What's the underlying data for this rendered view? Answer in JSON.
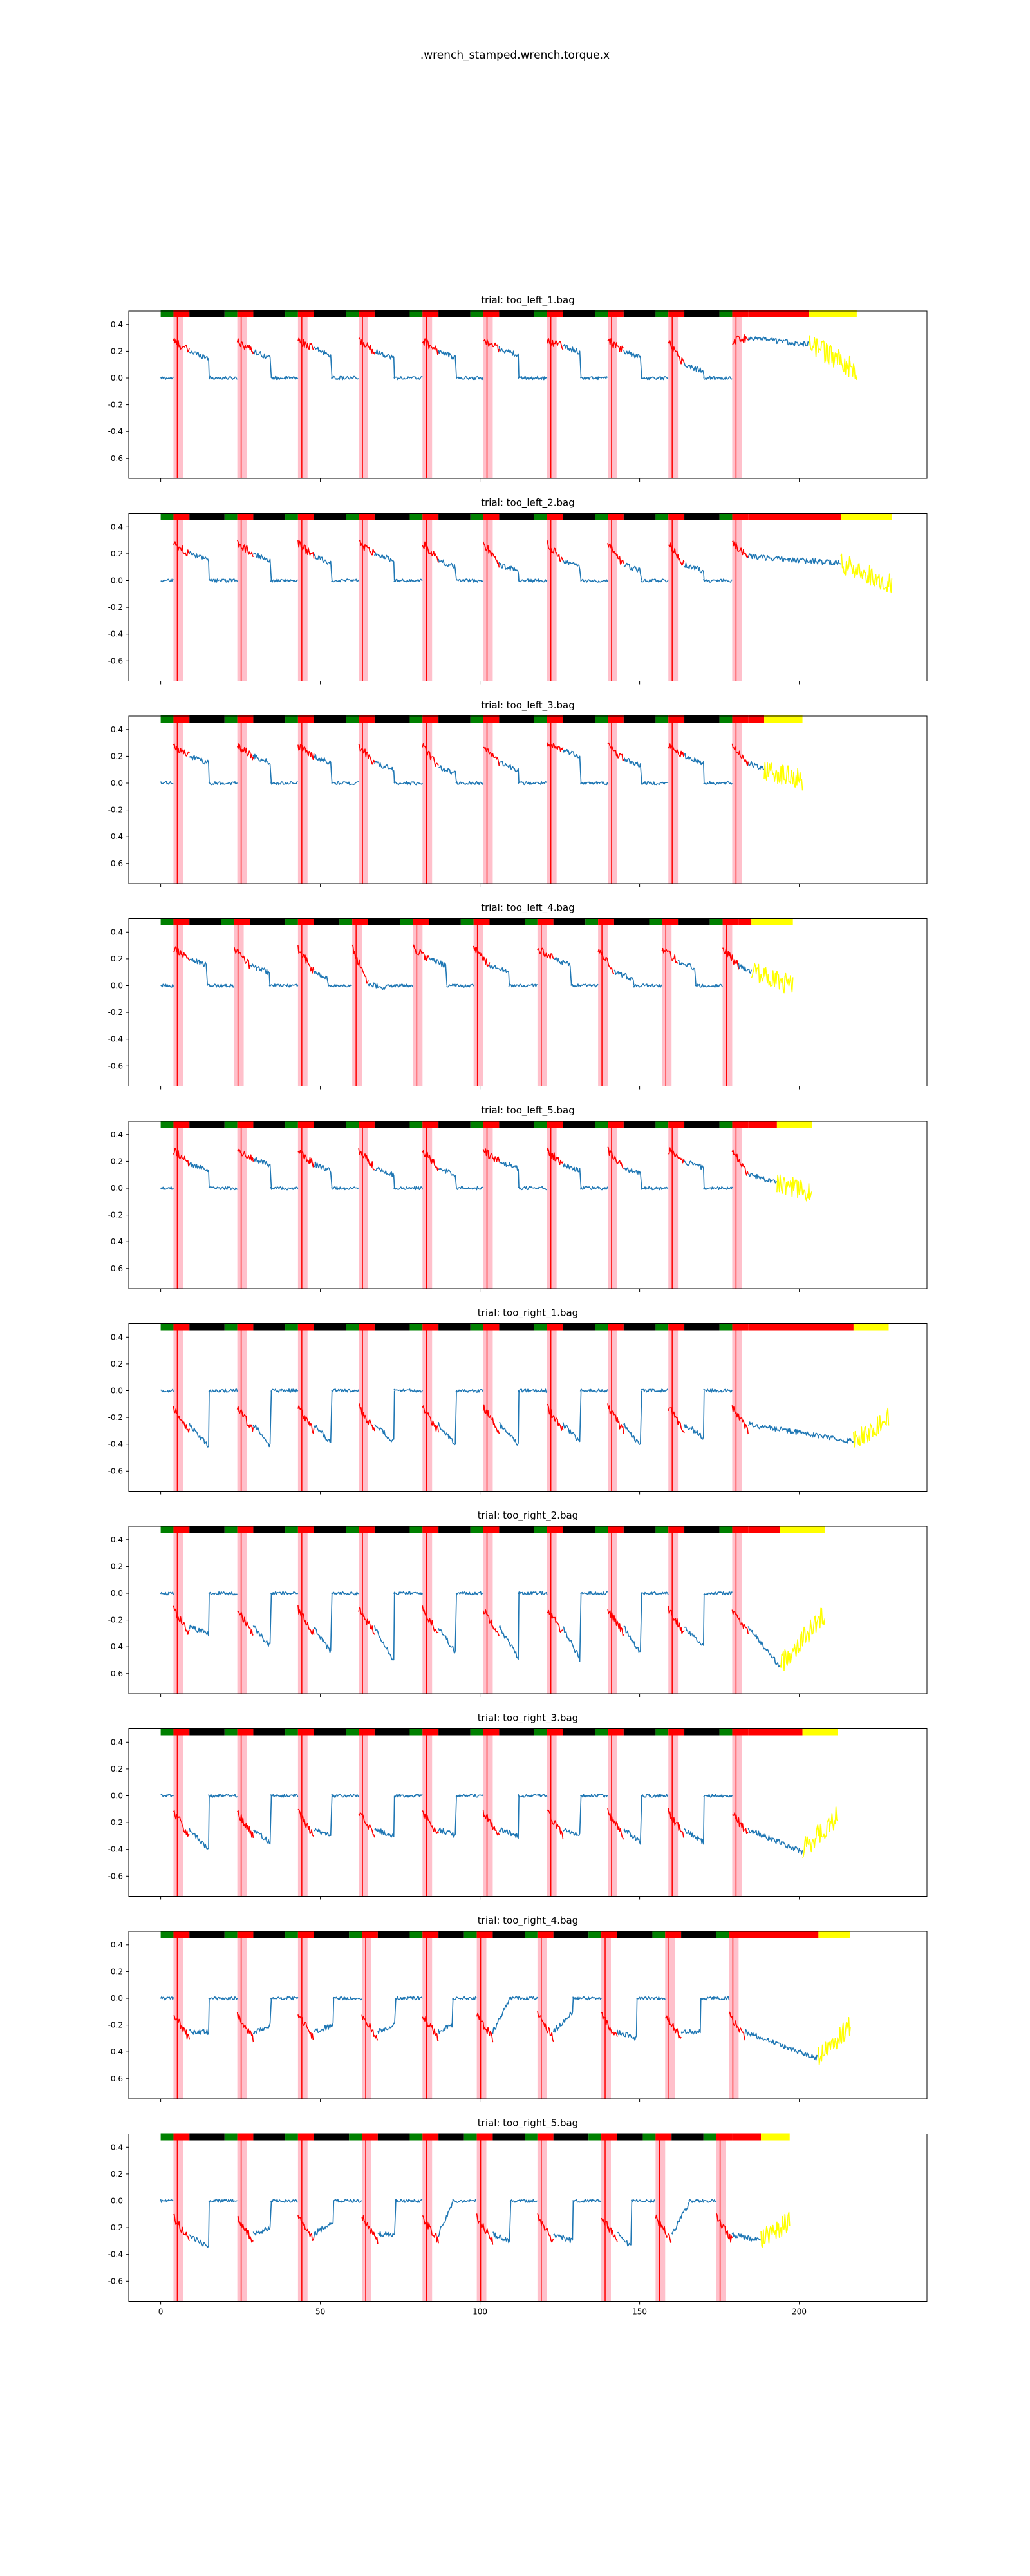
{
  "figure": {
    "title": ".wrench_stamped.wrench.torque.x",
    "x_ticks": [
      0,
      50,
      100,
      150,
      200
    ],
    "y_ticks": [
      0.4,
      0.2,
      0.0,
      -0.2,
      -0.4,
      -0.6
    ],
    "xlim": [
      -10,
      240
    ],
    "ylim": [
      -0.75,
      0.5
    ],
    "colors": {
      "line": "#1f77b4",
      "contact": "#ff0000",
      "after": "#ffff00",
      "green_bar": "#008000",
      "red_bar": "#ff0000",
      "black_bar": "#000000",
      "yellow_bar": "#ffff00",
      "band": "#ffc0cb",
      "band_line": "#ff0000"
    }
  },
  "chart_data": [
    {
      "type": "line",
      "title": "trial: too_left_1.bag",
      "xlabel": "",
      "ylabel": "",
      "direction": "up",
      "trial_end": 203,
      "tail_end": 218,
      "events": [
        4,
        24,
        43,
        62,
        82,
        101,
        121,
        140,
        159,
        179
      ],
      "plateau": [
        0.2,
        0.2,
        0.22,
        0.2,
        0.2,
        0.22,
        0.24,
        0.2,
        0.1,
        0.3
      ],
      "tail_level": 0.05
    },
    {
      "type": "line",
      "title": "trial: too_left_2.bag",
      "xlabel": "",
      "ylabel": "",
      "direction": "up",
      "trial_end": 213,
      "tail_end": 229,
      "events": [
        4,
        24,
        43,
        62,
        82,
        101,
        121,
        140,
        159,
        179
      ],
      "plateau": [
        0.2,
        0.2,
        0.18,
        0.2,
        0.15,
        0.12,
        0.15,
        0.12,
        0.12,
        0.18
      ],
      "tail_level": -0.02
    },
    {
      "type": "line",
      "title": "trial: too_left_3.bag",
      "xlabel": "",
      "ylabel": "",
      "direction": "up",
      "trial_end": 189,
      "tail_end": 201,
      "events": [
        4,
        24,
        43,
        62,
        82,
        101,
        121,
        140,
        159,
        179
      ],
      "plateau": [
        0.2,
        0.2,
        0.2,
        0.15,
        0.12,
        0.15,
        0.25,
        0.18,
        0.2,
        0.15
      ],
      "tail_level": 0.02
    },
    {
      "type": "line",
      "title": "trial: too_left_4.bag",
      "xlabel": "",
      "ylabel": "",
      "direction": "up",
      "trial_end": 185,
      "tail_end": 198,
      "events": [
        4,
        23,
        43,
        60,
        79,
        98,
        118,
        137,
        157,
        176
      ],
      "plateau": [
        0.2,
        0.15,
        0.1,
        0.02,
        0.2,
        0.15,
        0.2,
        0.1,
        0.18,
        0.15
      ],
      "tail_level": 0.0
    },
    {
      "type": "line",
      "title": "trial: too_left_5.bag",
      "xlabel": "",
      "ylabel": "",
      "direction": "up",
      "trial_end": 193,
      "tail_end": 204,
      "events": [
        4,
        24,
        43,
        62,
        82,
        101,
        121,
        140,
        159,
        179
      ],
      "plateau": [
        0.18,
        0.22,
        0.18,
        0.15,
        0.15,
        0.2,
        0.18,
        0.15,
        0.2,
        0.1
      ],
      "tail_level": -0.05
    },
    {
      "type": "line",
      "title": "trial: too_right_1.bag",
      "xlabel": "",
      "ylabel": "",
      "direction": "down",
      "trial_end": 217,
      "tail_end": 228,
      "events": [
        4,
        24,
        43,
        62,
        82,
        101,
        121,
        140,
        159,
        179
      ],
      "plateau": [
        -0.42,
        -0.42,
        -0.4,
        -0.38,
        -0.4,
        -0.4,
        -0.38,
        -0.42,
        -0.35,
        -0.38
      ],
      "tail_level": -0.2
    },
    {
      "type": "line",
      "title": "trial: too_right_2.bag",
      "xlabel": "",
      "ylabel": "",
      "direction": "down",
      "trial_end": 194,
      "tail_end": 208,
      "events": [
        4,
        24,
        43,
        62,
        82,
        101,
        121,
        140,
        159,
        179
      ],
      "plateau": [
        -0.3,
        -0.4,
        -0.45,
        -0.5,
        -0.45,
        -0.48,
        -0.5,
        -0.45,
        -0.4,
        -0.55
      ],
      "tail_level": -0.15
    },
    {
      "type": "line",
      "title": "trial: too_right_3.bag",
      "xlabel": "",
      "ylabel": "",
      "direction": "down",
      "trial_end": 201,
      "tail_end": 212,
      "events": [
        4,
        24,
        43,
        62,
        82,
        101,
        121,
        140,
        159,
        179
      ],
      "plateau": [
        -0.4,
        -0.35,
        -0.3,
        -0.3,
        -0.3,
        -0.3,
        -0.3,
        -0.35,
        -0.35,
        -0.42
      ],
      "tail_level": -0.15
    },
    {
      "type": "line",
      "title": "trial: too_right_4.bag",
      "xlabel": "",
      "ylabel": "",
      "direction": "down",
      "trial_end": 206,
      "tail_end": 216,
      "events": [
        4,
        24,
        43,
        63,
        82,
        99,
        118,
        138,
        158,
        178
      ],
      "plateau": [
        -0.25,
        -0.2,
        -0.2,
        -0.2,
        -0.2,
        0.0,
        -0.1,
        -0.3,
        -0.25,
        -0.45
      ],
      "tail_level": -0.2
    },
    {
      "type": "line",
      "title": "trial: too_right_5.bag",
      "xlabel": "",
      "ylabel": "",
      "direction": "down",
      "trial_end": 188,
      "tail_end": 197,
      "events": [
        4,
        24,
        43,
        63,
        82,
        99,
        118,
        138,
        155,
        174
      ],
      "plateau": [
        -0.35,
        -0.2,
        -0.15,
        -0.25,
        -0.02,
        -0.3,
        -0.3,
        -0.35,
        -0.02,
        -0.3
      ],
      "tail_level": -0.15
    }
  ]
}
